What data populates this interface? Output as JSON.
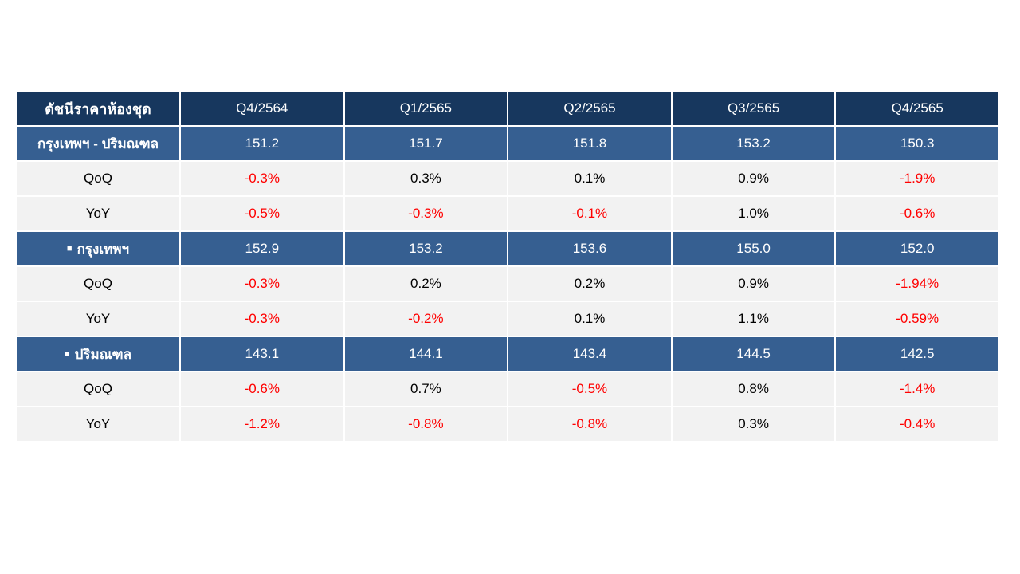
{
  "chart_data": {
    "type": "table",
    "columns": [
      "ดัชนีราคาห้องชุด",
      "Q4/2564",
      "Q1/2565",
      "Q2/2565",
      "Q3/2565",
      "Q4/2565"
    ],
    "rows": [
      {
        "kind": "group",
        "bullet": "",
        "label": "กรุงเทพฯ - ปริมณฑล",
        "values": [
          "151.2",
          "151.7",
          "151.8",
          "153.2",
          "150.3"
        ]
      },
      {
        "kind": "metric",
        "label": "QoQ",
        "values": [
          "-0.3%",
          "0.3%",
          "0.1%",
          "0.9%",
          "-1.9%"
        ]
      },
      {
        "kind": "metric",
        "label": "YoY",
        "values": [
          "-0.5%",
          "-0.3%",
          "-0.1%",
          "1.0%",
          "-0.6%"
        ]
      },
      {
        "kind": "group",
        "bullet": "■",
        "label": "กรุงเทพฯ",
        "values": [
          "152.9",
          "153.2",
          "153.6",
          "155.0",
          "152.0"
        ]
      },
      {
        "kind": "metric",
        "label": "QoQ",
        "values": [
          "-0.3%",
          "0.2%",
          "0.2%",
          "0.9%",
          "-1.94%"
        ]
      },
      {
        "kind": "metric",
        "label": "YoY",
        "values": [
          "-0.3%",
          "-0.2%",
          "0.1%",
          "1.1%",
          "-0.59%"
        ]
      },
      {
        "kind": "group",
        "bullet": "■",
        "label": "ปริมณฑล",
        "values": [
          "143.1",
          "144.1",
          "143.4",
          "144.5",
          "142.5"
        ]
      },
      {
        "kind": "metric",
        "label": "QoQ",
        "values": [
          "-0.6%",
          "0.7%",
          "-0.5%",
          "0.8%",
          "-1.4%"
        ]
      },
      {
        "kind": "metric",
        "label": "YoY",
        "values": [
          "-1.2%",
          "-0.8%",
          "-0.8%",
          "0.3%",
          "-0.4%"
        ]
      }
    ]
  },
  "colors": {
    "header_bg": "#17375e",
    "group_bg": "#365f91",
    "metric_bg": "#f2f2f2",
    "negative": "#ff0000"
  }
}
